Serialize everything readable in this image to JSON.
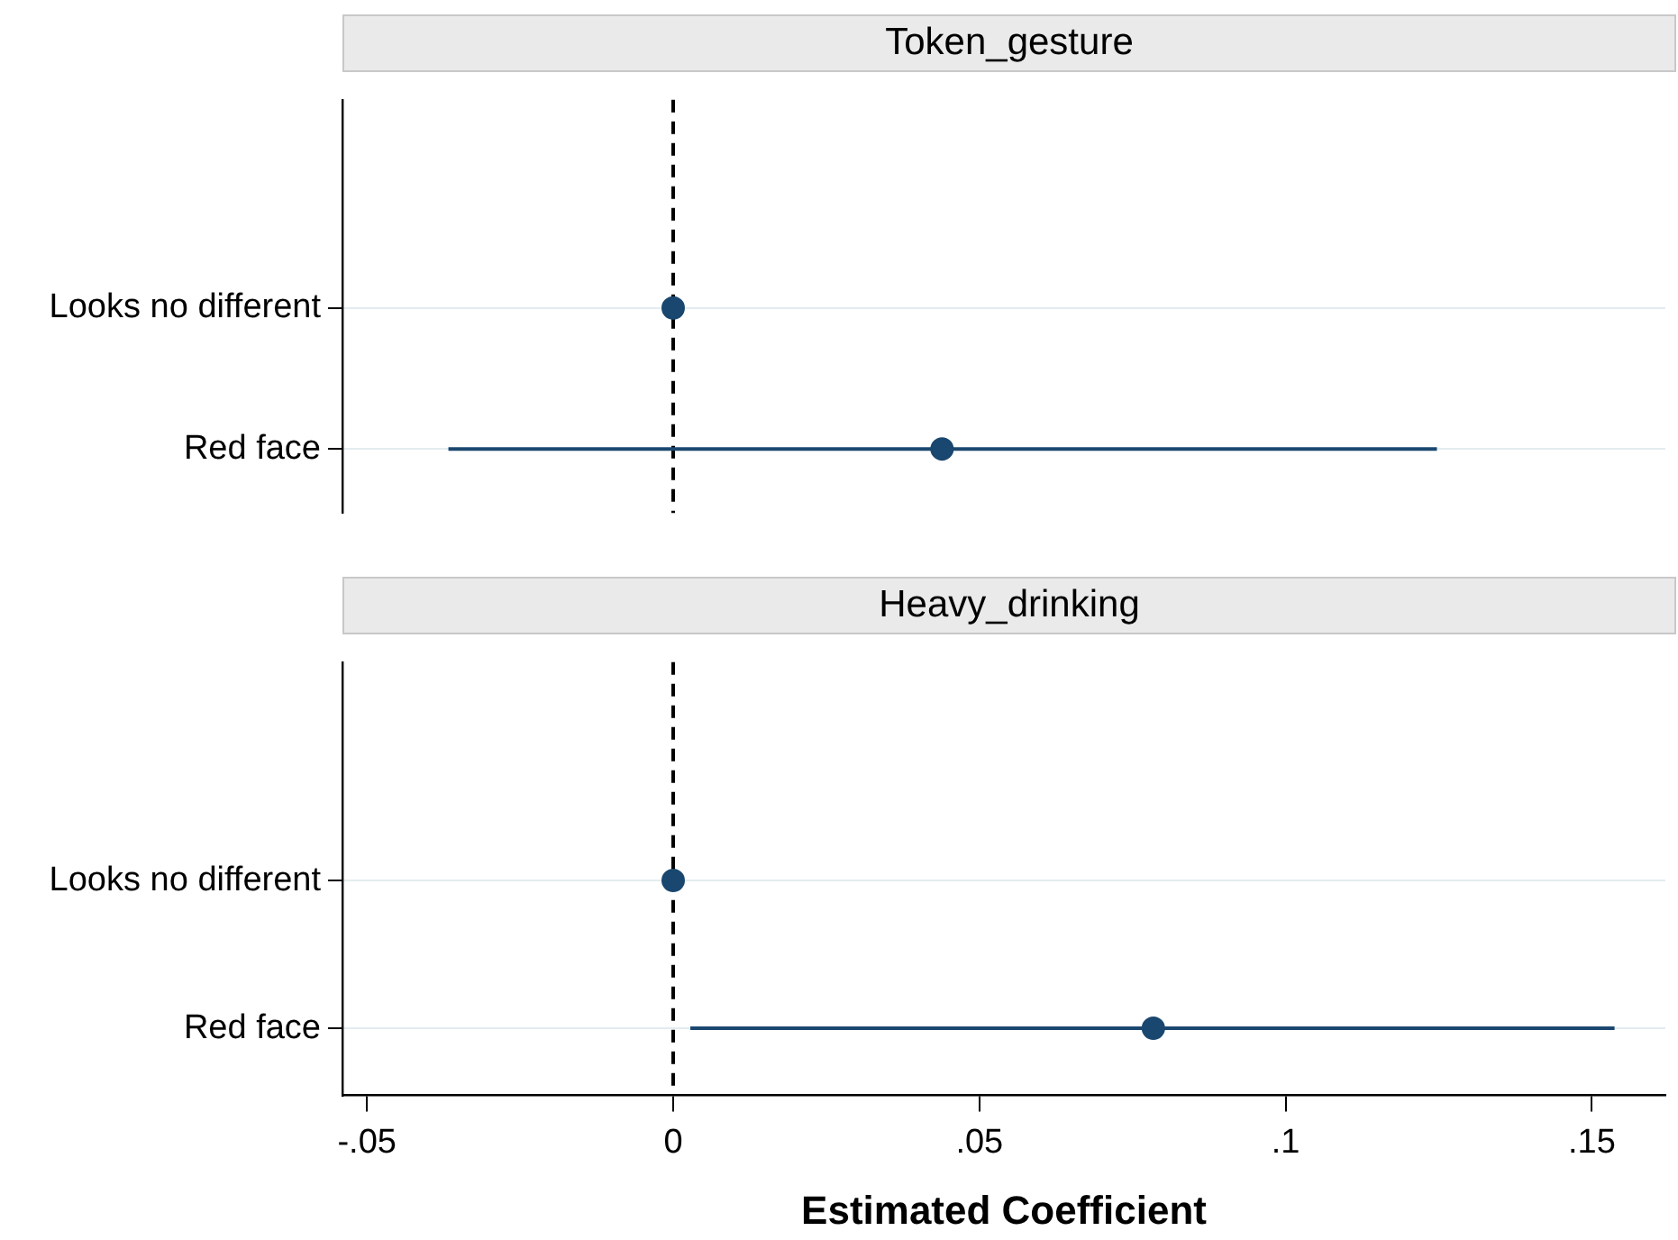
{
  "chart_data": [
    {
      "type": "scatter",
      "orientation": "horizontal",
      "title": "Token_gesture",
      "categories": [
        "Looks no different",
        "Red face"
      ],
      "values": [
        0,
        0.0439
      ],
      "errors": [
        null,
        [
          -0.0367,
          0.1247
        ]
      ],
      "color": "#1a476f",
      "marker": "circle",
      "xlim": [
        -0.054,
        0.162
      ],
      "tick_labels": "y",
      "grid": "y",
      "legend": false,
      "ref_lines": [
        {
          "axis": "x",
          "value": 0,
          "line_style": "dashed",
          "color": "#000000"
        }
      ]
    },
    {
      "type": "scatter",
      "orientation": "horizontal",
      "title": "Heavy_drinking",
      "xlabel": "Estimated Coefficient",
      "categories": [
        "Looks no different",
        "Red face"
      ],
      "values": [
        0,
        0.0784
      ],
      "errors": [
        null,
        [
          0.0028,
          0.1537
        ]
      ],
      "color": "#1a476f",
      "marker": "circle",
      "xlim": [
        -0.054,
        0.162
      ],
      "xticks": [
        {
          "value": -0.05,
          "label": "-.05"
        },
        {
          "value": 0,
          "label": "0"
        },
        {
          "value": 0.05,
          "label": ".05"
        },
        {
          "value": 0.1,
          "label": ".1"
        },
        {
          "value": 0.15,
          "label": ".15"
        }
      ],
      "grid": "y",
      "legend": false,
      "ref_lines": [
        {
          "axis": "x",
          "value": 0,
          "line_style": "dashed",
          "color": "#000000"
        }
      ]
    }
  ]
}
